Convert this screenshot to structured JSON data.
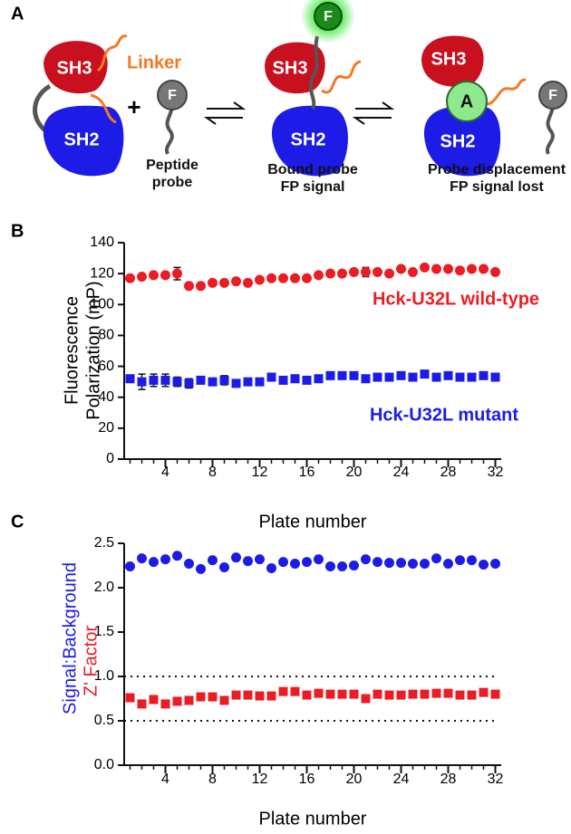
{
  "diagram": {
    "panel_label": "A",
    "sh3": "SH3",
    "sh2": "SH2",
    "linker": "Linker",
    "fluor": "F",
    "plus": "+",
    "analyte": "A",
    "probe_label": [
      "Peptide",
      "probe"
    ],
    "bound_label": [
      "Bound probe",
      "FP signal"
    ],
    "displace_label": [
      "Probe displacement",
      "FP signal lost"
    ]
  },
  "chart_data": [
    {
      "type": "scatter",
      "panel_label": "B",
      "xlabel": "Plate number",
      "ylabel": [
        "Fluorescence",
        "Polarization (mP)"
      ],
      "x": [
        1,
        2,
        3,
        4,
        5,
        6,
        7,
        8,
        9,
        10,
        11,
        12,
        13,
        14,
        15,
        16,
        17,
        18,
        19,
        20,
        21,
        22,
        23,
        24,
        25,
        26,
        27,
        28,
        29,
        30,
        31,
        32
      ],
      "xlim": [
        0.5,
        32.5
      ],
      "xticks": [
        4,
        8,
        12,
        16,
        20,
        24,
        28,
        32
      ],
      "xminorticks": [
        1,
        2,
        3,
        4,
        5,
        6,
        7,
        8,
        9,
        10,
        11,
        12,
        13,
        14,
        15,
        16,
        17,
        18,
        19,
        20,
        21,
        22,
        23,
        24,
        25,
        26,
        27,
        28,
        29,
        30,
        31,
        32
      ],
      "ylim": [
        0,
        140
      ],
      "yticks": [
        0,
        20,
        40,
        60,
        80,
        100,
        120,
        140
      ],
      "series": [
        {
          "name": "Hck-U32L wild-type",
          "color": "#ec1c24",
          "marker": "circle",
          "values": [
            117,
            118,
            119,
            119,
            120,
            112,
            112,
            114,
            114,
            115,
            114,
            116,
            117,
            117,
            117,
            117,
            119,
            120,
            120,
            121,
            121,
            121,
            120,
            123,
            121,
            124,
            123,
            123,
            122,
            123,
            123,
            121
          ],
          "errors": [
            null,
            null,
            null,
            null,
            4,
            null,
            null,
            null,
            null,
            null,
            null,
            null,
            null,
            null,
            null,
            null,
            null,
            null,
            null,
            null,
            3,
            null,
            null,
            null,
            null,
            null,
            null,
            null,
            null,
            null,
            null,
            null
          ]
        },
        {
          "name": "Hck-U32L mutant",
          "color": "#1c1ce6",
          "marker": "square",
          "values": [
            52,
            50,
            51,
            51,
            50,
            49,
            51,
            50,
            51,
            49,
            50,
            50,
            53,
            51,
            52,
            51,
            52,
            54,
            54,
            54,
            52,
            53,
            53,
            54,
            53,
            55,
            53,
            54,
            53,
            53,
            54,
            53
          ],
          "errors": [
            null,
            5,
            4,
            4,
            3,
            3,
            null,
            null,
            3,
            null,
            null,
            null,
            null,
            null,
            null,
            null,
            null,
            null,
            null,
            null,
            null,
            null,
            null,
            null,
            null,
            null,
            null,
            null,
            null,
            null,
            null,
            null
          ]
        }
      ]
    },
    {
      "type": "scatter",
      "panel_label": "C",
      "xlabel": "Plate number",
      "x": [
        1,
        2,
        3,
        4,
        5,
        6,
        7,
        8,
        9,
        10,
        11,
        12,
        13,
        14,
        15,
        16,
        17,
        18,
        19,
        20,
        21,
        22,
        23,
        24,
        25,
        26,
        27,
        28,
        29,
        30,
        31,
        32
      ],
      "xlim": [
        0.5,
        32.5
      ],
      "xticks": [
        4,
        8,
        12,
        16,
        20,
        24,
        28,
        32
      ],
      "xminorticks": [
        1,
        2,
        3,
        4,
        5,
        6,
        7,
        8,
        9,
        10,
        11,
        12,
        13,
        14,
        15,
        16,
        17,
        18,
        19,
        20,
        21,
        22,
        23,
        24,
        25,
        26,
        27,
        28,
        29,
        30,
        31,
        32
      ],
      "ylim": [
        0,
        2.5
      ],
      "yticks": [
        {
          "value": 0,
          "label": "0.0"
        },
        0.5,
        {
          "value": 1,
          "label": "1.0"
        },
        1.5,
        {
          "value": 2,
          "label": "2.0"
        },
        2.5
      ],
      "reference_lines": [
        1,
        0.5
      ],
      "series": [
        {
          "name": "Signal:Background",
          "color": "#1c1ce6",
          "marker": "circle",
          "values": [
            2.24,
            2.33,
            2.29,
            2.32,
            2.36,
            2.27,
            2.21,
            2.31,
            2.23,
            2.34,
            2.3,
            2.32,
            2.22,
            2.29,
            2.27,
            2.29,
            2.32,
            2.24,
            2.24,
            2.25,
            2.32,
            2.29,
            2.28,
            2.28,
            2.27,
            2.27,
            2.33,
            2.27,
            2.31,
            2.31,
            2.26,
            2.27
          ]
        },
        {
          "name": "Z' Factor",
          "color": "#ec1c24",
          "marker": "square",
          "values": [
            0.76,
            0.69,
            0.74,
            0.69,
            0.72,
            0.73,
            0.77,
            0.77,
            0.73,
            0.79,
            0.79,
            0.78,
            0.78,
            0.83,
            0.83,
            0.79,
            0.81,
            0.8,
            0.8,
            0.8,
            0.75,
            0.8,
            0.79,
            0.79,
            0.8,
            0.8,
            0.81,
            0.81,
            0.79,
            0.79,
            0.82,
            0.8
          ]
        }
      ]
    }
  ]
}
